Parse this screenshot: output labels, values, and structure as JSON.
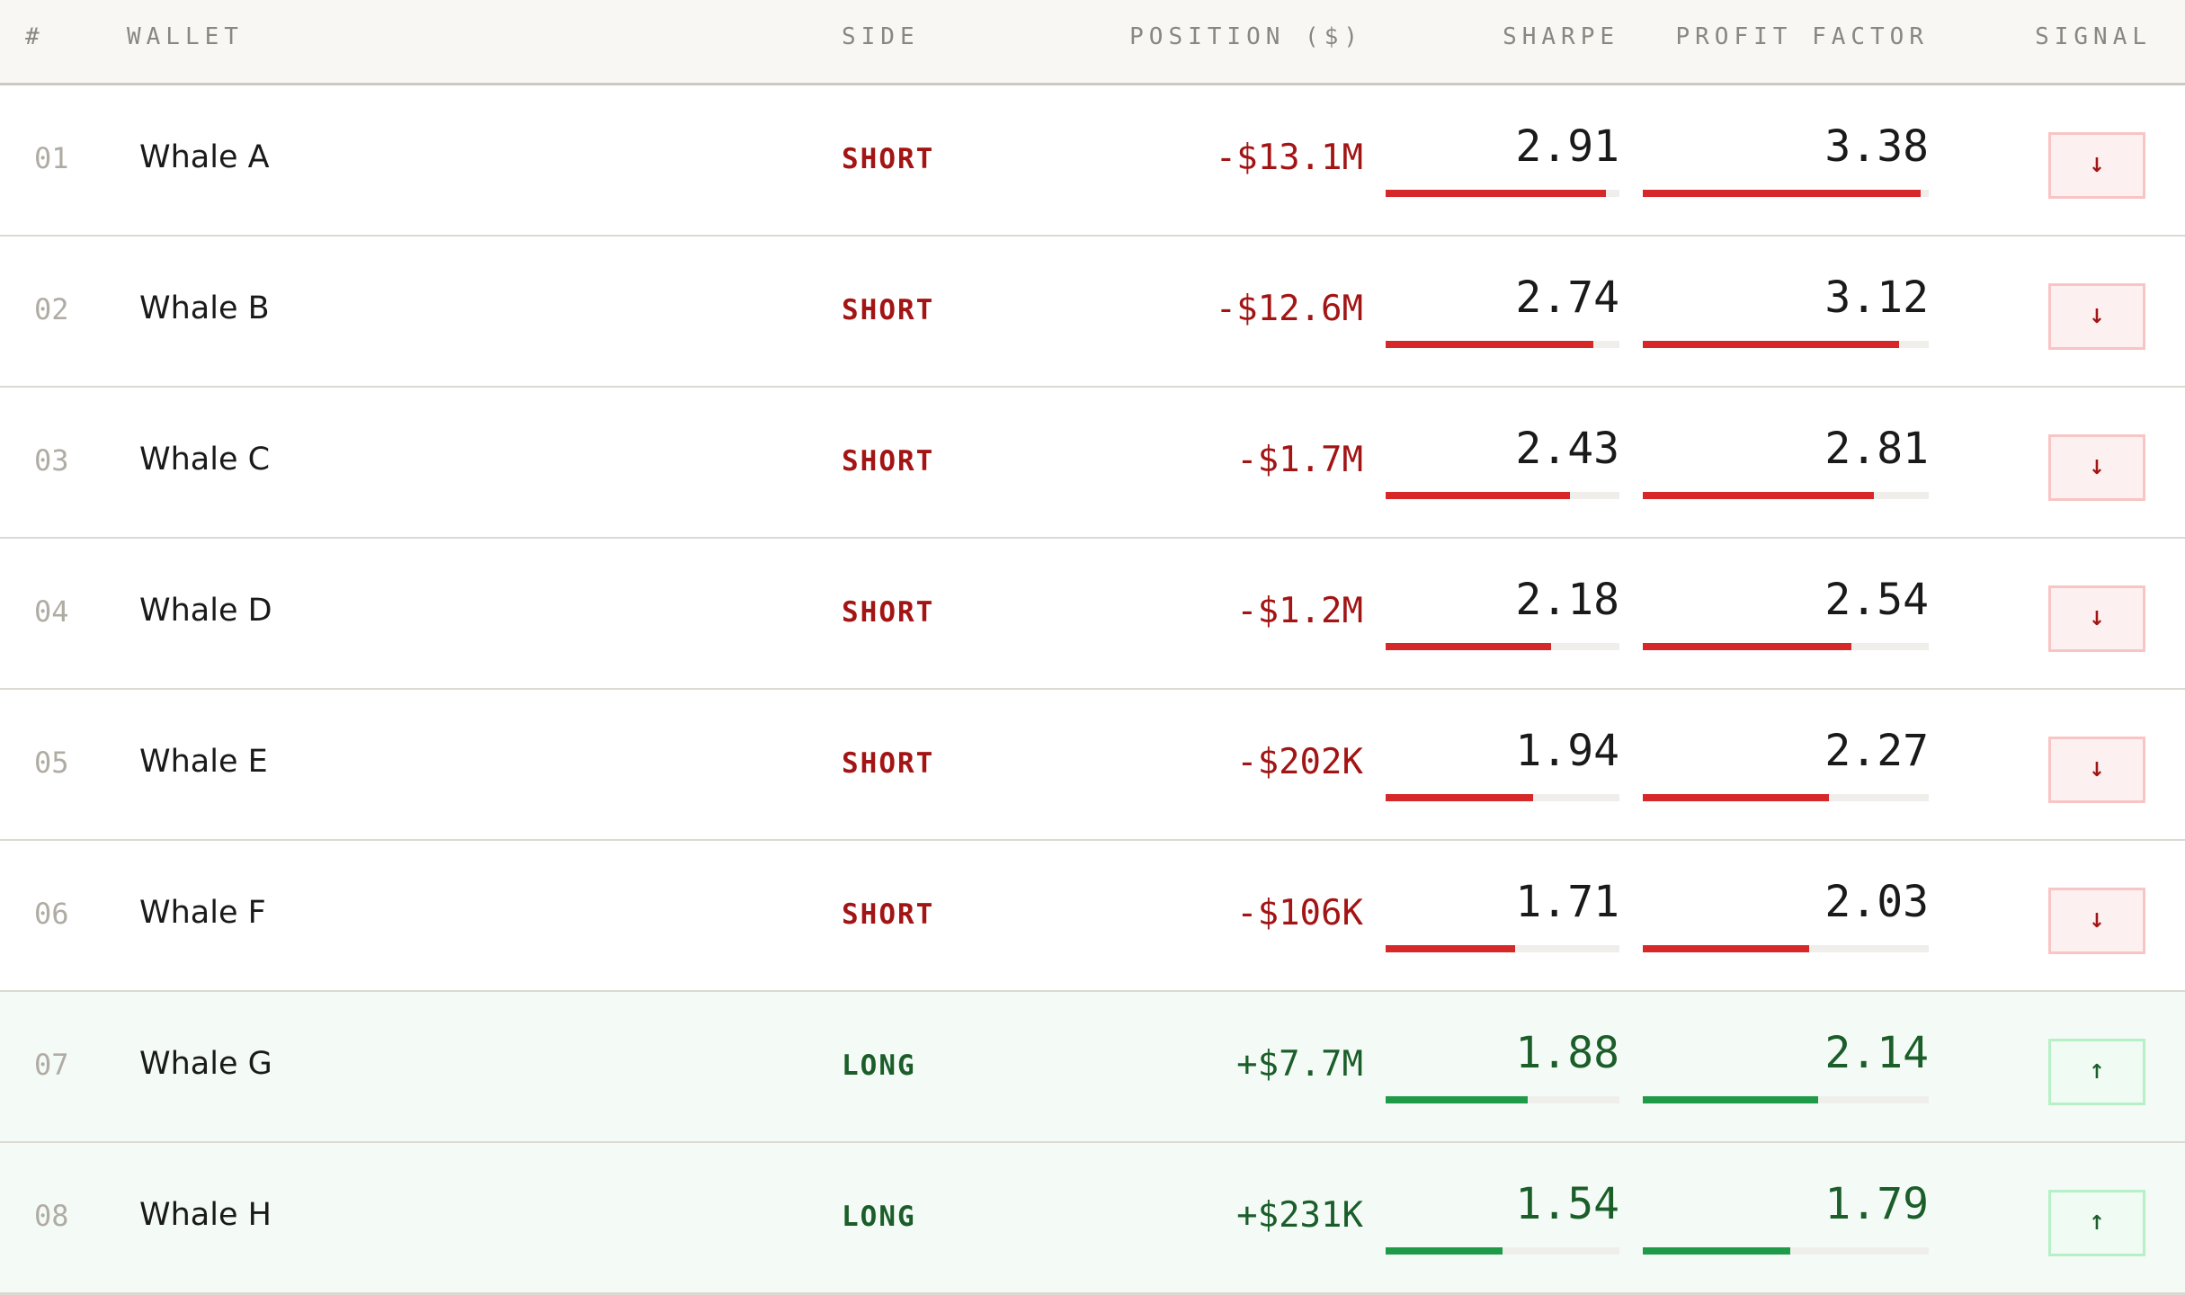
{
  "header": {
    "columns": [
      "#",
      "WALLET",
      "SIDE",
      "POSITION ($)",
      "SHARPE",
      "PROFIT FACTOR",
      "SIGNAL"
    ]
  },
  "rows": [
    {
      "number": "01",
      "wallet": "Whale A",
      "side": "SHORT",
      "position": "-$13.1M",
      "sharpe": 2.91,
      "profit_factor": 3.38,
      "signal": "↓",
      "color": "#d62828",
      "text_color": "#a31515",
      "background": "#ffffff",
      "signal_background": "#fdf0f0",
      "signal_border": "#f8c4c4"
    },
    {
      "number": "02",
      "wallet": "Whale B",
      "side": "SHORT",
      "position": "-$12.6M",
      "sharpe": 2.74,
      "profit_factor": 3.12,
      "signal": "↓",
      "color": "#d62828",
      "text_color": "#a31515",
      "background": "#ffffff",
      "signal_background": "#fdf0f0",
      "signal_border": "#f8c4c4"
    },
    {
      "number": "03",
      "wallet": "Whale C",
      "side": "SHORT",
      "position": "-$1.7M",
      "sharpe": 2.43,
      "profit_factor": 2.81,
      "signal": "↓",
      "color": "#d62828",
      "text_color": "#a31515",
      "background": "#ffffff",
      "signal_background": "#fdf0f0",
      "signal_border": "#f8c4c4"
    },
    {
      "number": "04",
      "wallet": "Whale D",
      "side": "SHORT",
      "position": "-$1.2M",
      "sharpe": 2.18,
      "profit_factor": 2.54,
      "signal": "↓",
      "color": "#d62828",
      "text_color": "#a31515",
      "background": "#ffffff",
      "signal_background": "#fdf0f0",
      "signal_border": "#f8c4c4"
    },
    {
      "number": "05",
      "wallet": "Whale E",
      "side": "SHORT",
      "position": "-$202K",
      "sharpe": 1.94,
      "profit_factor": 2.27,
      "signal": "↓",
      "color": "#d62828",
      "text_color": "#a31515",
      "background": "#ffffff",
      "signal_background": "#fdf0f0",
      "signal_border": "#f8c4c4"
    },
    {
      "number": "06",
      "wallet": "Whale F",
      "side": "SHORT",
      "position": "-$106K",
      "sharpe": 1.71,
      "profit_factor": 2.03,
      "signal": "↓",
      "color": "#d62828",
      "text_color": "#a31515",
      "background": "#ffffff",
      "signal_background": "#fdf0f0",
      "signal_border": "#f8c4c4"
    },
    {
      "number": "07",
      "wallet": "Whale G",
      "side": "LONG",
      "position": "+$7.7M",
      "sharpe": 1.88,
      "profit_factor": 2.14,
      "signal": "↑",
      "color": "#1f9a48",
      "text_color": "#1b5e2a",
      "background": "#f4fbf6",
      "signal_background": "#f0fbf3",
      "signal_border": "#b6f0c6"
    },
    {
      "number": "08",
      "wallet": "Whale H",
      "side": "LONG",
      "position": "+$231K",
      "sharpe": 1.54,
      "profit_factor": 1.79,
      "signal": "↑",
      "color": "#1f9a48",
      "text_color": "#1b5e2a",
      "background": "#f4fbf6",
      "signal_background": "#f0fbf3",
      "signal_border": "#b6f0c6"
    }
  ]
}
